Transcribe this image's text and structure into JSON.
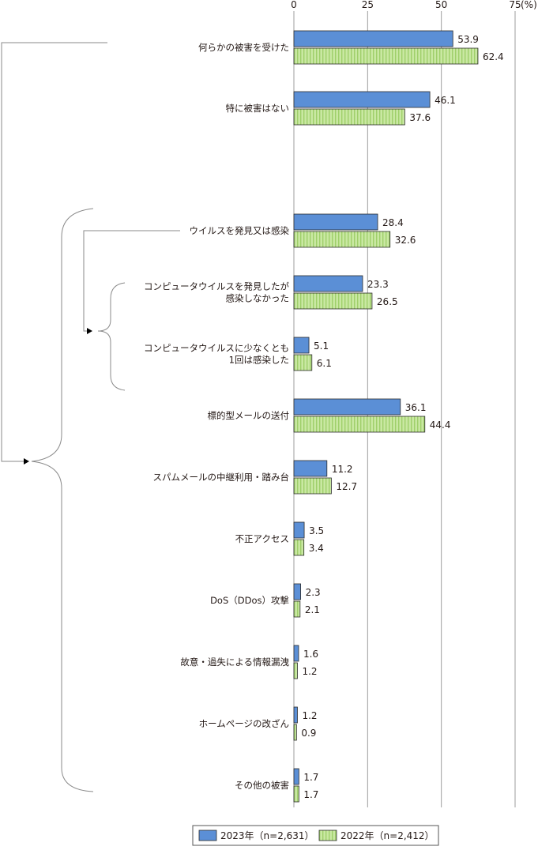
{
  "colors": {
    "series_2023": "#5B8FD6",
    "series_2022": "#C9E8A2",
    "series_2022_stripe": "#9FCF6A",
    "axis": "#9E9E9E",
    "text": "#231815"
  },
  "chart_data": {
    "type": "bar",
    "orientation": "horizontal",
    "unit": "(%)",
    "xlim": [
      0,
      75
    ],
    "xticks": [
      "0",
      "25",
      "50",
      "75"
    ],
    "grid": true,
    "legend_position": "bottom",
    "categories": [
      "何らかの被害を受けた",
      "特に被害はない",
      "ウイルスを発見又は感染",
      "コンピュータウイルスを発見したが\n感染しなかった",
      "コンピュータウイルスに少なくとも\n1回は感染した",
      "標的型メールの送付",
      "スパムメールの中継利用・踏み台",
      "不正アクセス",
      "DoS（DDos）攻撃",
      "故意・過失による情報漏洩",
      "ホームページの改ざん",
      "その他の被害"
    ],
    "series": [
      {
        "name": "2023年（n=2,631）",
        "values": [
          53.9,
          46.1,
          28.4,
          23.3,
          5.1,
          36.1,
          11.2,
          3.5,
          2.3,
          1.6,
          1.2,
          1.7
        ],
        "labels": [
          "53.9",
          "46.1",
          "28.4",
          "23.3",
          "5.1",
          "36.1",
          "11.2",
          "3.5",
          "2.3",
          "1.6",
          "1.2",
          "1.7"
        ]
      },
      {
        "name": "2022年（n=2,412）",
        "values": [
          62.4,
          37.6,
          32.6,
          26.5,
          6.1,
          44.4,
          12.7,
          3.4,
          2.1,
          1.2,
          0.9,
          1.7
        ],
        "labels": [
          "62.4",
          "37.6",
          "32.6",
          "26.5",
          "6.1",
          "44.4",
          "12.7",
          "3.4",
          "2.1",
          "1.2",
          "0.9",
          "1.7"
        ]
      }
    ]
  }
}
